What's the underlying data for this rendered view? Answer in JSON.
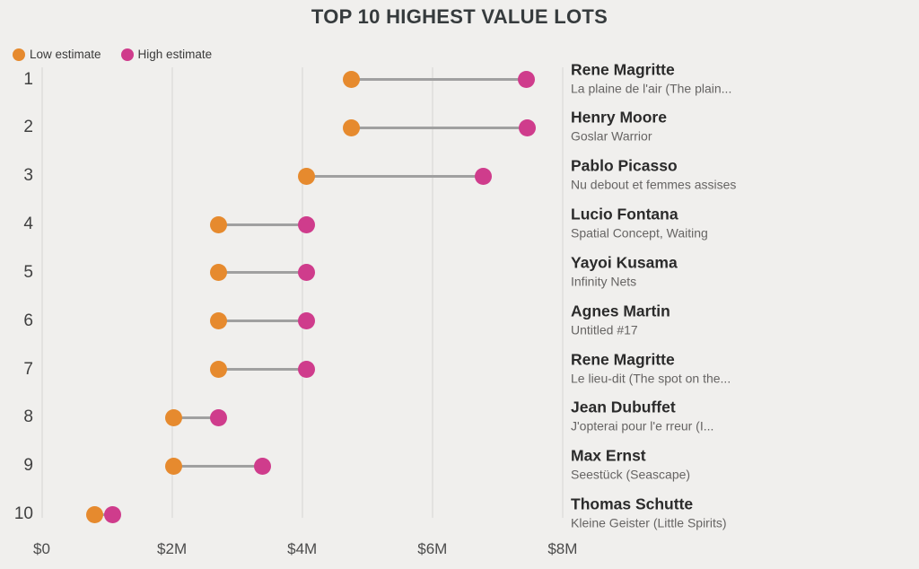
{
  "title": "TOP 10 HIGHEST VALUE LOTS",
  "legend": {
    "low_label": "Low estimate",
    "high_label": "High estimate"
  },
  "colors": {
    "low": "#e68a2e",
    "high": "#cf3c8c",
    "connector": "#a0a0a0",
    "grid": "#e3e2e0",
    "background": "#f0efed"
  },
  "chart_data": {
    "type": "dumbbell",
    "title": "TOP 10 HIGHEST VALUE LOTS",
    "legend": [
      "Low estimate",
      "High estimate"
    ],
    "legend_position": "top-left",
    "grid": "vertical",
    "x_axis": {
      "label": "",
      "ticks": [
        "$0",
        "$2M",
        "$4M",
        "$6M",
        "$8M"
      ],
      "tick_values_m": [
        0,
        2,
        4,
        6,
        8
      ],
      "range_m": [
        0,
        8.2
      ],
      "units": "USD millions"
    },
    "rows": [
      {
        "rank": "1",
        "artist": "Rene Magritte",
        "work": "La plaine de l'air (The plain...",
        "low_m": 4.75,
        "high_m": 7.45
      },
      {
        "rank": "2",
        "artist": "Henry Moore",
        "work": "Goslar Warrior",
        "low_m": 4.75,
        "high_m": 7.46
      },
      {
        "rank": "3",
        "artist": "Pablo Picasso",
        "work": "Nu debout et femmes assises",
        "low_m": 4.07,
        "high_m": 6.78
      },
      {
        "rank": "4",
        "artist": "Lucio Fontana",
        "work": "Spatial Concept, Waiting",
        "low_m": 2.71,
        "high_m": 4.07
      },
      {
        "rank": "5",
        "artist": "Yayoi Kusama",
        "work": "Infinity Nets",
        "low_m": 2.71,
        "high_m": 4.07
      },
      {
        "rank": "6",
        "artist": "Agnes Martin",
        "work": "Untitled #17",
        "low_m": 2.71,
        "high_m": 4.07
      },
      {
        "rank": "7",
        "artist": "Rene Magritte",
        "work": "Le lieu-dit (The spot on the...",
        "low_m": 2.71,
        "high_m": 4.07
      },
      {
        "rank": "8",
        "artist": "Jean Dubuffet",
        "work": "J'opterai pour l'e rreur (I...",
        "low_m": 2.03,
        "high_m": 2.71
      },
      {
        "rank": "9",
        "artist": "Max Ernst",
        "work": "Seestück (Seascape)",
        "low_m": 2.03,
        "high_m": 3.39
      },
      {
        "rank": "10",
        "artist": "Thomas Schutte",
        "work": "Kleine Geister (Little Spirits)",
        "low_m": 0.81,
        "high_m": 1.09
      }
    ]
  }
}
